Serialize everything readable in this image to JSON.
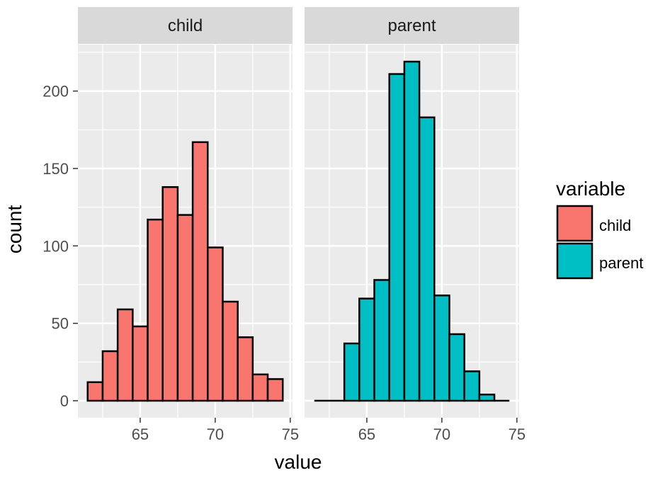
{
  "chart_data": {
    "type": "bar",
    "subtype": "faceted-histogram",
    "xlabel": "value",
    "ylabel": "count",
    "xlim": [
      60.85,
      75.15
    ],
    "ylim": [
      -10.95,
      230
    ],
    "x_ticks": [
      65,
      70,
      75
    ],
    "y_ticks": [
      0,
      50,
      100,
      150,
      200
    ],
    "grid": true,
    "legend_placement": "right",
    "legend": {
      "title": "variable",
      "items": [
        {
          "label": "child",
          "color": "#F8766D"
        },
        {
          "label": "parent",
          "color": "#00BFC4"
        }
      ]
    },
    "facets": [
      {
        "name": "child",
        "color": "#F8766D",
        "bins": [
          {
            "x0": 61.5,
            "x1": 62.5,
            "count": 12
          },
          {
            "x0": 62.5,
            "x1": 63.5,
            "count": 32
          },
          {
            "x0": 63.5,
            "x1": 64.5,
            "count": 59
          },
          {
            "x0": 64.5,
            "x1": 65.5,
            "count": 48
          },
          {
            "x0": 65.5,
            "x1": 66.5,
            "count": 117
          },
          {
            "x0": 66.5,
            "x1": 67.5,
            "count": 138
          },
          {
            "x0": 67.5,
            "x1": 68.5,
            "count": 120
          },
          {
            "x0": 68.5,
            "x1": 69.5,
            "count": 167
          },
          {
            "x0": 69.5,
            "x1": 70.5,
            "count": 99
          },
          {
            "x0": 70.5,
            "x1": 71.5,
            "count": 64
          },
          {
            "x0": 71.5,
            "x1": 72.5,
            "count": 41
          },
          {
            "x0": 72.5,
            "x1": 73.5,
            "count": 17
          },
          {
            "x0": 73.5,
            "x1": 74.5,
            "count": 14
          }
        ]
      },
      {
        "name": "parent",
        "color": "#00BFC4",
        "bins": [
          {
            "x0": 61.5,
            "x1": 62.5,
            "count": 0
          },
          {
            "x0": 62.5,
            "x1": 63.5,
            "count": 0
          },
          {
            "x0": 63.5,
            "x1": 64.5,
            "count": 37
          },
          {
            "x0": 64.5,
            "x1": 65.5,
            "count": 66
          },
          {
            "x0": 65.5,
            "x1": 66.5,
            "count": 78
          },
          {
            "x0": 66.5,
            "x1": 67.5,
            "count": 211
          },
          {
            "x0": 67.5,
            "x1": 68.5,
            "count": 219
          },
          {
            "x0": 68.5,
            "x1": 69.5,
            "count": 183
          },
          {
            "x0": 69.5,
            "x1": 70.5,
            "count": 68
          },
          {
            "x0": 70.5,
            "x1": 71.5,
            "count": 43
          },
          {
            "x0": 71.5,
            "x1": 72.5,
            "count": 19
          },
          {
            "x0": 72.5,
            "x1": 73.5,
            "count": 4
          },
          {
            "x0": 73.5,
            "x1": 74.5,
            "count": 0
          }
        ]
      }
    ]
  }
}
